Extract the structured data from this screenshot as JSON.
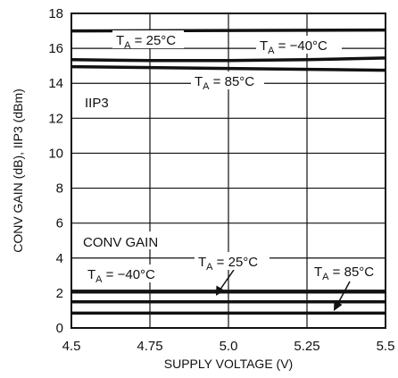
{
  "chart_data": {
    "type": "line",
    "title": "",
    "xlabel": "SUPPLY VOLTAGE (V)",
    "ylabel": "CONV GAIN (dB), IIP3 (dBm)",
    "xlim": [
      4.5,
      5.5
    ],
    "ylim": [
      0,
      18
    ],
    "xticks": [
      "4.5",
      "4.75",
      "5.0",
      "5.25",
      "5.5"
    ],
    "yticks": [
      "0",
      "2",
      "4",
      "6",
      "8",
      "10",
      "12",
      "14",
      "16",
      "18"
    ],
    "grid": true,
    "legend": "none",
    "colors": {
      "line": "#111111",
      "grid": "#111111",
      "background": "#ffffff"
    },
    "groups": {
      "iip3": "IIP3",
      "conv_gain": "CONV GAIN"
    },
    "series": [
      {
        "group": "iip3",
        "label_t": "T",
        "label_sub": "A",
        "label_rest": " = 25°C",
        "x": [
          4.5,
          5.5
        ],
        "y": [
          17.0,
          17.05
        ]
      },
      {
        "group": "iip3",
        "label_t": "T",
        "label_sub": "A",
        "label_rest": " = −40°C",
        "x": [
          4.5,
          4.75,
          5.0,
          5.25,
          5.5
        ],
        "y": [
          15.35,
          15.3,
          15.3,
          15.35,
          15.45
        ]
      },
      {
        "group": "iip3",
        "label_t": "T",
        "label_sub": "A",
        "label_rest": " = 85°C",
        "x": [
          4.5,
          5.0,
          5.5
        ],
        "y": [
          14.95,
          14.85,
          14.75
        ]
      },
      {
        "group": "conv_gain",
        "label_t": "T",
        "label_sub": "A",
        "label_rest": " = −40°C",
        "x": [
          4.5,
          5.5
        ],
        "y": [
          2.1,
          2.1
        ]
      },
      {
        "group": "conv_gain",
        "label_t": "T",
        "label_sub": "A",
        "label_rest": " = 25°C",
        "x": [
          4.5,
          5.5
        ],
        "y": [
          1.5,
          1.5
        ]
      },
      {
        "group": "conv_gain",
        "label_t": "T",
        "label_sub": "A",
        "label_rest": " = 85°C",
        "x": [
          4.5,
          5.5
        ],
        "y": [
          0.85,
          0.85
        ]
      }
    ]
  }
}
